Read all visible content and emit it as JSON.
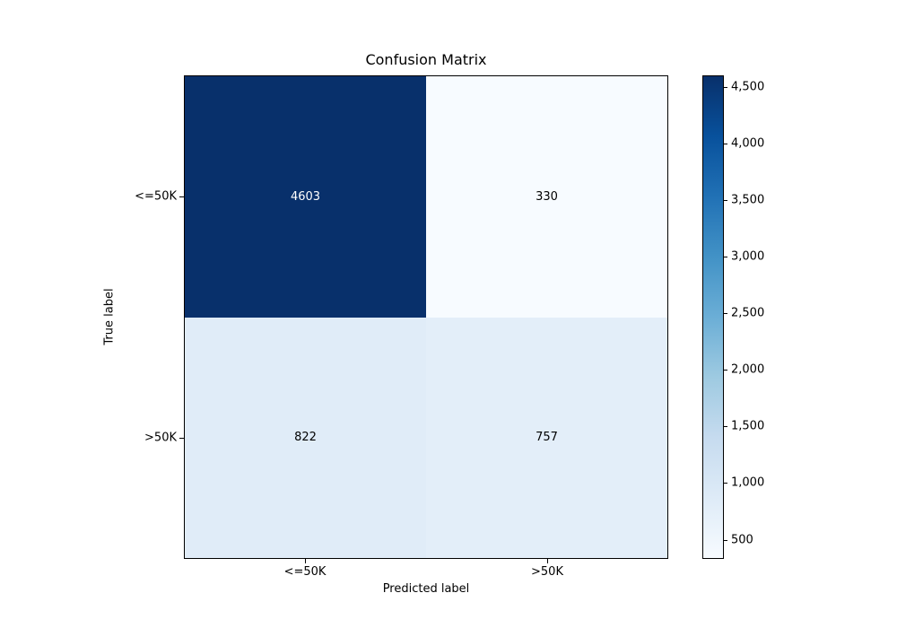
{
  "chart_data": {
    "type": "heatmap",
    "title": "Confusion Matrix",
    "xlabel": "Predicted label",
    "ylabel": "True label",
    "x_tick_labels": [
      "<=50K",
      ">50K"
    ],
    "y_tick_labels": [
      "<=50K",
      ">50K"
    ],
    "matrix": [
      [
        4603,
        330
      ],
      [
        822,
        757
      ]
    ],
    "cell_colors": [
      [
        "#08306b",
        "#f7fbff"
      ],
      [
        "#e0ecf8",
        "#e3eef9"
      ]
    ],
    "cell_text_colors": [
      [
        "#ffffff",
        "#000000"
      ],
      [
        "#000000",
        "#000000"
      ]
    ],
    "colormap": "Blues",
    "vmin": 330,
    "vmax": 4603,
    "colorbar_ticks": [
      500,
      1000,
      1500,
      2000,
      2500,
      3000,
      3500,
      4000,
      4500
    ],
    "colorbar_tick_labels": [
      "500",
      "1,000",
      "1,500",
      "2,000",
      "2,500",
      "3,000",
      "3,500",
      "4,000",
      "4,500"
    ],
    "colorbar_gradient": [
      {
        "pos": 0,
        "color": "#f7fbff"
      },
      {
        "pos": 12.5,
        "color": "#deebf7"
      },
      {
        "pos": 25,
        "color": "#c6dbef"
      },
      {
        "pos": 37.5,
        "color": "#9ecae1"
      },
      {
        "pos": 50,
        "color": "#6baed6"
      },
      {
        "pos": 62.5,
        "color": "#4292c6"
      },
      {
        "pos": 75,
        "color": "#2171b5"
      },
      {
        "pos": 87.5,
        "color": "#08519c"
      },
      {
        "pos": 100,
        "color": "#08306b"
      }
    ]
  }
}
